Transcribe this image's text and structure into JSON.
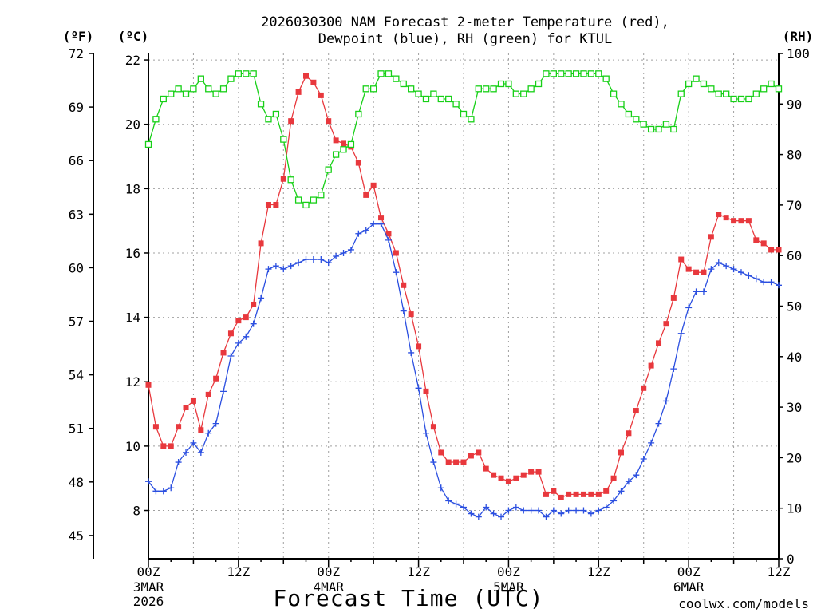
{
  "header": {
    "title_line1": "2026030300 NAM Forecast 2-meter Temperature (red),",
    "title_line2": "Dewpoint (blue), RH (green) for KTUL"
  },
  "footer": {
    "watermark": "coolwx.com/models",
    "watermark_color": "#e0303a"
  },
  "chart_data": {
    "type": "line",
    "title": "2026030300 NAM Forecast 2-meter Temperature (red), Dewpoint (blue), RH (green) for KTUL",
    "xlabel": "Forecast Time (UTC)",
    "x_unit": "forecast hour from 2026-03-03 00Z",
    "x_range": [
      0,
      84
    ],
    "x_ticks": [
      {
        "hour": 0,
        "label": "00Z",
        "date_line1": "3MAR",
        "date_line2": "2026"
      },
      {
        "hour": 12,
        "label": "12Z"
      },
      {
        "hour": 24,
        "label": "00Z",
        "date_line1": "4MAR"
      },
      {
        "hour": 36,
        "label": "12Z"
      },
      {
        "hour": 48,
        "label": "00Z",
        "date_line1": "5MAR"
      },
      {
        "hour": 60,
        "label": "12Z"
      },
      {
        "hour": 72,
        "label": "00Z",
        "date_line1": "6MAR"
      },
      {
        "hour": 84,
        "label": "12Z"
      }
    ],
    "y_left_c": {
      "label": "(ºC)",
      "range": [
        6.5,
        22.2
      ],
      "ticks": [
        8,
        10,
        12,
        14,
        16,
        18,
        20,
        22
      ]
    },
    "y_left_f": {
      "label": "(ºF)",
      "range": [
        43.7,
        72.0
      ],
      "ticks": [
        45,
        48,
        51,
        54,
        57,
        60,
        63,
        66,
        69,
        72
      ]
    },
    "y_right_rh": {
      "label": "(RH)",
      "range": [
        0,
        100
      ],
      "ticks": [
        0,
        10,
        20,
        30,
        40,
        50,
        60,
        70,
        80,
        90,
        100
      ]
    },
    "grid": true,
    "colors": {
      "temperature": "#e8383d",
      "dewpoint": "#2b4fe0",
      "rh": "#17d017",
      "grid": "#a0a0a0"
    },
    "series": [
      {
        "key": "temperature",
        "axis": "c",
        "marker": "filled-square",
        "values": [
          11.9,
          10.6,
          10.0,
          10.0,
          10.6,
          11.2,
          11.4,
          10.5,
          11.6,
          12.1,
          12.9,
          13.5,
          13.9,
          14.0,
          14.4,
          16.3,
          17.5,
          17.5,
          18.3,
          20.1,
          21.0,
          21.5,
          21.3,
          20.9,
          20.1,
          19.5,
          19.4,
          19.3,
          18.8,
          17.8,
          18.1,
          17.1,
          16.6,
          16.0,
          15.0,
          14.1,
          13.1,
          11.7,
          10.6,
          9.8,
          9.5,
          9.5,
          9.5,
          9.7,
          9.8,
          9.3,
          9.1,
          9.0,
          8.9,
          9.0,
          9.1,
          9.2,
          9.2,
          8.5,
          8.6,
          8.4,
          8.5,
          8.5,
          8.5,
          8.5,
          8.5,
          8.6,
          9.0,
          9.8,
          10.4,
          11.1,
          11.8,
          12.5,
          13.2,
          13.8,
          14.6,
          15.8,
          15.5,
          15.4,
          15.4,
          16.5,
          17.2,
          17.1,
          17.0,
          17.0,
          17.0,
          16.4,
          16.3,
          16.1,
          16.1
        ]
      },
      {
        "key": "dewpoint",
        "axis": "c",
        "marker": "plus",
        "values": [
          8.9,
          8.6,
          8.6,
          8.7,
          9.5,
          9.8,
          10.1,
          9.8,
          10.4,
          10.7,
          11.7,
          12.8,
          13.2,
          13.4,
          13.8,
          14.6,
          15.5,
          15.6,
          15.5,
          15.6,
          15.7,
          15.8,
          15.8,
          15.8,
          15.7,
          15.9,
          16.0,
          16.1,
          16.6,
          16.7,
          16.9,
          16.9,
          16.4,
          15.4,
          14.2,
          12.9,
          11.8,
          10.4,
          9.5,
          8.7,
          8.3,
          8.2,
          8.1,
          7.9,
          7.8,
          8.1,
          7.9,
          7.8,
          8.0,
          8.1,
          8.0,
          8.0,
          8.0,
          7.8,
          8.0,
          7.9,
          8.0,
          8.0,
          8.0,
          7.9,
          8.0,
          8.1,
          8.3,
          8.6,
          8.9,
          9.1,
          9.6,
          10.1,
          10.7,
          11.4,
          12.4,
          13.5,
          14.3,
          14.8,
          14.8,
          15.5,
          15.7,
          15.6,
          15.5,
          15.4,
          15.3,
          15.2,
          15.1,
          15.1,
          15.0
        ]
      },
      {
        "key": "rh",
        "axis": "rh",
        "marker": "open-square",
        "values": [
          82,
          87,
          91,
          92,
          93,
          92,
          93,
          95,
          93,
          92,
          93,
          95,
          96,
          96,
          96,
          90,
          87,
          88,
          83,
          75,
          71,
          70,
          71,
          72,
          77,
          80,
          81,
          82,
          88,
          93,
          93,
          96,
          96,
          95,
          94,
          93,
          92,
          91,
          92,
          91,
          91,
          90,
          88,
          87,
          93,
          93,
          93,
          94,
          94,
          92,
          92,
          93,
          94,
          96,
          96,
          96,
          96,
          96,
          96,
          96,
          96,
          95,
          92,
          90,
          88,
          87,
          86,
          85,
          85,
          86,
          85,
          92,
          94,
          95,
          94,
          93,
          92,
          92,
          91,
          91,
          91,
          92,
          93,
          94,
          93
        ]
      }
    ]
  }
}
